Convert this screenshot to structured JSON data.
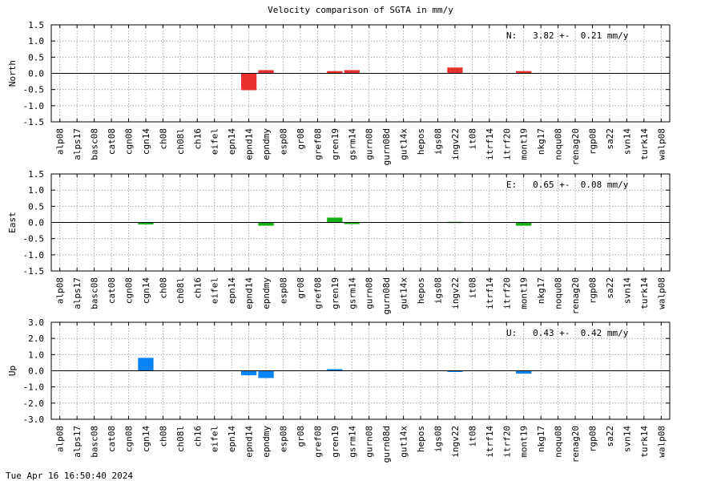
{
  "title": "Velocity comparison of SGTA in mm/y",
  "timestamp": "Tue Apr 16 16:50:40 2024",
  "chart_data": [
    {
      "type": "bar",
      "ylabel": "North",
      "annotation": "N:   3.82 +-  0.21 mm/y",
      "ylim": [
        -1.5,
        1.5
      ],
      "yticks": [
        1.5,
        1.0,
        0.5,
        0.0,
        -0.5,
        -1.0,
        -1.5
      ],
      "ytick_labels": [
        "1.5",
        "1.0",
        "0.5",
        "0.0",
        "-0.5",
        "-1.0",
        "-1.5"
      ],
      "color": "#e8302f",
      "grid": true,
      "categories": [
        "alp08",
        "alps17",
        "basc08",
        "cat08",
        "cgn08",
        "cgn14",
        "ch08",
        "ch08l",
        "ch16",
        "eifel",
        "epn14",
        "epnd14",
        "epndmy",
        "esp08",
        "gr08",
        "gref08",
        "gren19",
        "gsrm14",
        "gurn08",
        "gurn08d",
        "gut14x",
        "hepos",
        "igs08",
        "ingv22",
        "it08",
        "itrf14",
        "itrf20",
        "mont19",
        "nkg17",
        "noqu08",
        "renag20",
        "rgp08",
        "sa22",
        "svn14",
        "turk14",
        "walp08"
      ],
      "values": [
        0,
        0,
        0,
        0,
        0,
        0,
        0,
        0,
        0,
        0,
        0,
        -0.52,
        0.1,
        0,
        0,
        0,
        0.07,
        0.1,
        0,
        0,
        0,
        0,
        0,
        0.18,
        0,
        0,
        0,
        0.07,
        0,
        0,
        0,
        0,
        0,
        0,
        0,
        0
      ]
    },
    {
      "type": "bar",
      "ylabel": "East",
      "annotation": "E:   0.65 +-  0.08 mm/y",
      "ylim": [
        -1.5,
        1.5
      ],
      "yticks": [
        1.5,
        1.0,
        0.5,
        0.0,
        -0.5,
        -1.0,
        -1.5
      ],
      "ytick_labels": [
        "1.5",
        "1.0",
        "0.5",
        "0.0",
        "-0.5",
        "-1.0",
        "-1.5"
      ],
      "color": "#12b012",
      "grid": true,
      "categories": [
        "alp08",
        "alps17",
        "basc08",
        "cat08",
        "cgn08",
        "cgn14",
        "ch08",
        "ch08l",
        "ch16",
        "eifel",
        "epn14",
        "epnd14",
        "epndmy",
        "esp08",
        "gr08",
        "gref08",
        "gren19",
        "gsrm14",
        "gurn08",
        "gurn08d",
        "gut14x",
        "hepos",
        "igs08",
        "ingv22",
        "it08",
        "itrf14",
        "itrf20",
        "mont19",
        "nkg17",
        "noqu08",
        "renag20",
        "rgp08",
        "sa22",
        "svn14",
        "turk14",
        "walp08"
      ],
      "values": [
        0,
        0,
        0,
        0,
        0,
        -0.06,
        0,
        0,
        0,
        0,
        0,
        0,
        -0.1,
        0,
        0,
        0,
        0.15,
        -0.05,
        0,
        0,
        0,
        0,
        0,
        0.02,
        0,
        0,
        0,
        -0.1,
        0,
        0,
        0,
        0,
        0,
        0,
        0,
        0
      ]
    },
    {
      "type": "bar",
      "ylabel": "Up",
      "annotation": "U:   0.43 +-  0.42 mm/y",
      "ylim": [
        -3.0,
        3.0
      ],
      "yticks": [
        3.0,
        2.0,
        1.0,
        0.0,
        -1.0,
        -2.0,
        -3.0
      ],
      "ytick_labels": [
        "3.0",
        "2.0",
        "1.0",
        "0.0",
        "-1.0",
        "-2.0",
        "-3.0"
      ],
      "color": "#0a84f5",
      "grid": true,
      "categories": [
        "alp08",
        "alps17",
        "basc08",
        "cat08",
        "cgn08",
        "cgn14",
        "ch08",
        "ch08l",
        "ch16",
        "eifel",
        "epn14",
        "epnd14",
        "epndmy",
        "esp08",
        "gr08",
        "gref08",
        "gren19",
        "gsrm14",
        "gurn08",
        "gurn08d",
        "gut14x",
        "hepos",
        "igs08",
        "ingv22",
        "it08",
        "itrf14",
        "itrf20",
        "mont19",
        "nkg17",
        "noqu08",
        "renag20",
        "rgp08",
        "sa22",
        "svn14",
        "turk14",
        "walp08"
      ],
      "values": [
        0,
        0,
        0,
        0,
        0,
        0.8,
        0,
        0,
        0,
        0,
        0,
        -0.28,
        -0.45,
        0,
        0,
        0,
        0.1,
        0,
        0,
        0,
        0,
        0,
        0,
        -0.06,
        0,
        0,
        0,
        -0.18,
        0,
        0,
        0,
        0,
        0,
        0,
        0,
        0
      ]
    }
  ]
}
